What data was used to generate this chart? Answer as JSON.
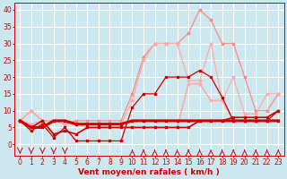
{
  "background_color": "#cce8ee",
  "grid_color": "#ffffff",
  "xlabel": "Vent moyen/en rafales ( km/h )",
  "xlabel_color": "#cc0000",
  "xlabel_fontsize": 6.5,
  "tick_color": "#cc0000",
  "tick_fontsize": 5.5,
  "ylim": [
    -3.5,
    42
  ],
  "xlim": [
    -0.5,
    23.5
  ],
  "yticks": [
    0,
    5,
    10,
    15,
    20,
    25,
    30,
    35,
    40
  ],
  "xticks": [
    0,
    1,
    2,
    3,
    4,
    5,
    6,
    7,
    8,
    9,
    10,
    11,
    12,
    13,
    14,
    15,
    16,
    17,
    18,
    19,
    20,
    21,
    22,
    23
  ],
  "series": [
    {
      "x": [
        0,
        1,
        2,
        3,
        4,
        5,
        6,
        7,
        8,
        9,
        10,
        11,
        12,
        13,
        14,
        15,
        16,
        17,
        18,
        19,
        20,
        21,
        22,
        23
      ],
      "y": [
        7,
        10,
        7,
        7,
        6,
        7,
        7,
        7,
        7,
        7,
        15,
        26,
        30,
        30,
        30,
        33,
        40,
        37,
        30,
        30,
        20,
        10,
        10,
        15
      ],
      "color": "#ff8888",
      "lw": 0.9,
      "marker": "o",
      "ms": 1.8,
      "ls": "-",
      "zorder": 2
    },
    {
      "x": [
        0,
        1,
        2,
        3,
        4,
        5,
        6,
        7,
        8,
        9,
        10,
        11,
        12,
        13,
        14,
        15,
        16,
        17,
        18,
        19,
        20,
        21,
        22,
        23
      ],
      "y": [
        7,
        10,
        7,
        7,
        6,
        6,
        6,
        6,
        6,
        6,
        13,
        25,
        30,
        30,
        30,
        19,
        19,
        30,
        13,
        20,
        9,
        9,
        15,
        15
      ],
      "color": "#ffaaaa",
      "lw": 0.9,
      "marker": "o",
      "ms": 1.8,
      "ls": "-",
      "zorder": 2
    },
    {
      "x": [
        0,
        1,
        2,
        3,
        4,
        5,
        6,
        7,
        8,
        9,
        10,
        11,
        12,
        13,
        14,
        15,
        16,
        17,
        18,
        19,
        20,
        21,
        22,
        23
      ],
      "y": [
        7,
        4,
        6,
        2,
        5,
        1,
        1,
        1,
        1,
        1,
        11,
        15,
        15,
        20,
        20,
        20,
        22,
        20,
        14,
        7,
        7,
        7,
        7,
        10
      ],
      "color": "#cc0000",
      "lw": 0.9,
      "marker": "s",
      "ms": 2.0,
      "ls": "-",
      "zorder": 3
    },
    {
      "x": [
        0,
        1,
        2,
        3,
        4,
        5,
        6,
        7,
        8,
        9,
        10,
        11,
        12,
        13,
        14,
        15,
        16,
        17,
        18,
        19,
        20,
        21,
        22,
        23
      ],
      "y": [
        7,
        5,
        5,
        7,
        7,
        6,
        6,
        6,
        6,
        6,
        7,
        7,
        7,
        7,
        7,
        7,
        7,
        7,
        7,
        7,
        7,
        7,
        7,
        7
      ],
      "color": "#cc0000",
      "lw": 2.2,
      "marker": "s",
      "ms": 2.0,
      "ls": "-",
      "zorder": 4
    },
    {
      "x": [
        0,
        1,
        2,
        3,
        4,
        5,
        6,
        7,
        8,
        9,
        10,
        11,
        12,
        13,
        14,
        15,
        16,
        17,
        18,
        19,
        20,
        21,
        22,
        23
      ],
      "y": [
        7,
        5,
        7,
        3,
        4,
        3,
        5,
        5,
        5,
        5,
        5,
        5,
        5,
        5,
        5,
        5,
        7,
        7,
        7,
        8,
        8,
        8,
        8,
        10
      ],
      "color": "#cc0000",
      "lw": 1.2,
      "marker": "s",
      "ms": 2.0,
      "ls": "-",
      "zorder": 3
    },
    {
      "x": [
        0,
        1,
        2,
        3,
        4,
        5,
        6,
        7,
        8,
        9,
        10,
        11,
        12,
        13,
        14,
        15,
        16,
        17,
        18,
        19,
        20,
        21,
        22,
        23
      ],
      "y": [
        7,
        6,
        7,
        7,
        7,
        6,
        5,
        5,
        5,
        5,
        5,
        5,
        5,
        5,
        5,
        18,
        18,
        13,
        13,
        7,
        7,
        7,
        7,
        7
      ],
      "color": "#ffaaaa",
      "lw": 1.2,
      "marker": "o",
      "ms": 1.8,
      "ls": "-",
      "zorder": 2
    }
  ],
  "arrow_ticks_down": [
    0,
    1,
    2,
    3,
    4
  ],
  "arrow_ticks_up": [
    10,
    11,
    12,
    13,
    14,
    15,
    16,
    17,
    18,
    19,
    20,
    21,
    22,
    23
  ]
}
